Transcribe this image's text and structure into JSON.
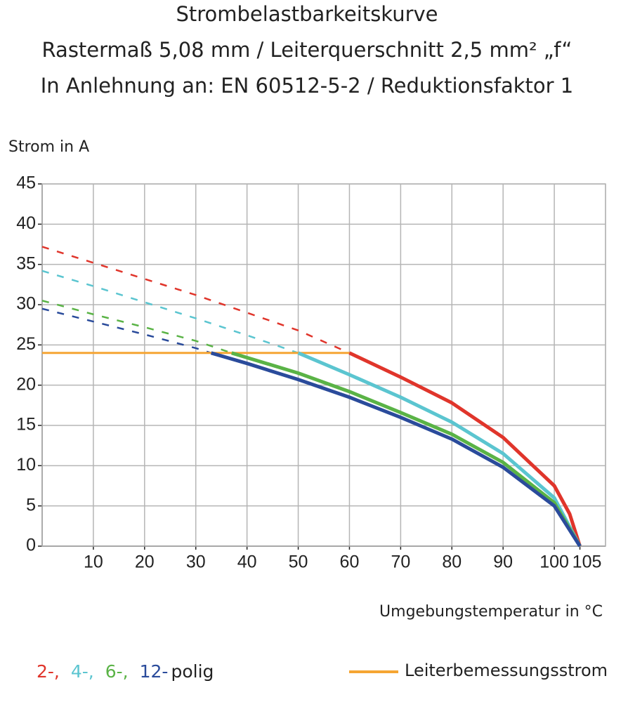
{
  "chart_data": {
    "type": "line",
    "title": "Strombelastbarkeitskurve",
    "subtitle": "Rastermaß 5,08 mm / Leiterquerschnitt 2,5 mm² „f“",
    "subtitle2": "In Anlehnung an: EN 60512-5-2 / Reduktionsfaktor 1",
    "ylabel": "Strom in A",
    "xlabel": "Umgebungstemperatur in °C",
    "xlim": [
      0,
      110
    ],
    "ylim": [
      0,
      45
    ],
    "xticks": [
      10,
      20,
      30,
      40,
      50,
      60,
      70,
      80,
      90,
      100,
      105
    ],
    "xgrid": [
      10,
      20,
      30,
      40,
      50,
      60,
      70,
      80,
      90,
      100,
      110
    ],
    "yticks": [
      0,
      5,
      10,
      15,
      20,
      25,
      30,
      35,
      40,
      45
    ],
    "grid": true,
    "legend_suffix": "polig",
    "series": [
      {
        "name": "2-,",
        "color": "#e0352b",
        "x": [
          60,
          70,
          80,
          90,
          100,
          103,
          105
        ],
        "values": [
          24,
          21,
          17.8,
          13.5,
          7.5,
          4,
          0
        ],
        "extrapolated": {
          "x": [
            0,
            10,
            20,
            30,
            40,
            50,
            60
          ],
          "values": [
            37.2,
            35.2,
            33.2,
            31.2,
            29,
            26.8,
            24
          ]
        }
      },
      {
        "name": "4-,",
        "color": "#5bc5d0",
        "x": [
          50,
          60,
          70,
          80,
          90,
          100,
          105
        ],
        "values": [
          24,
          21.3,
          18.5,
          15.4,
          11.5,
          6,
          0
        ],
        "extrapolated": {
          "x": [
            0,
            10,
            20,
            30,
            40,
            50
          ],
          "values": [
            34.2,
            32.3,
            30.3,
            28.3,
            26.2,
            24
          ]
        }
      },
      {
        "name": "6-,",
        "color": "#5ab346",
        "x": [
          37,
          50,
          60,
          70,
          80,
          90,
          100,
          105
        ],
        "values": [
          24,
          21.5,
          19.2,
          16.6,
          13.9,
          10.4,
          5.4,
          0
        ],
        "extrapolated": {
          "x": [
            0,
            10,
            20,
            30,
            37
          ],
          "values": [
            30.5,
            28.8,
            27.2,
            25.5,
            24
          ]
        }
      },
      {
        "name": "12-",
        "color": "#2a4b9b",
        "x": [
          33,
          40,
          50,
          60,
          70,
          80,
          90,
          100,
          105
        ],
        "values": [
          24,
          22.7,
          20.7,
          18.5,
          16,
          13.3,
          9.8,
          5,
          0
        ],
        "extrapolated": {
          "x": [
            0,
            10,
            20,
            30,
            33
          ],
          "values": [
            29.5,
            27.9,
            26.3,
            24.6,
            24
          ]
        }
      }
    ],
    "reference": {
      "name": "Leiterbemessungsstrom",
      "color": "#f5a533",
      "x": [
        0,
        60
      ],
      "values": [
        24,
        24
      ]
    }
  }
}
